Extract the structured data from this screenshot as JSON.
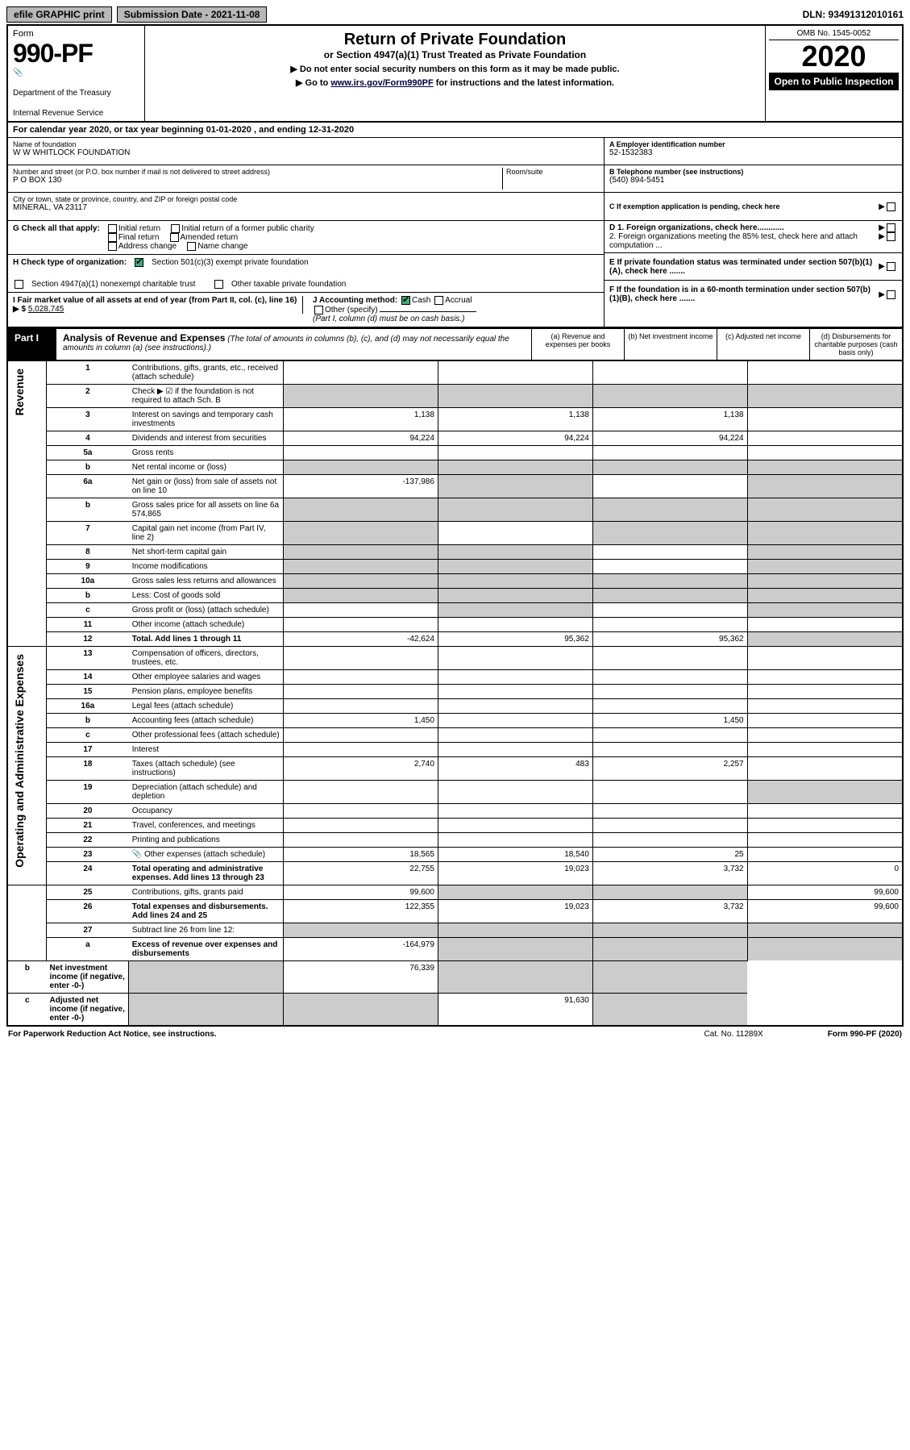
{
  "topbar": {
    "efile": "efile GRAPHIC print",
    "submission_label": "Submission Date - 2021-11-08",
    "dln": "DLN: 93491312010161"
  },
  "header": {
    "form_label": "Form",
    "form_no": "990-PF",
    "dept": "Department of the Treasury",
    "irs": "Internal Revenue Service",
    "title": "Return of Private Foundation",
    "subtitle": "or Section 4947(a)(1) Trust Treated as Private Foundation",
    "note1": "▶ Do not enter social security numbers on this form as it may be made public.",
    "note2_pre": "▶ Go to ",
    "note2_link": "www.irs.gov/Form990PF",
    "note2_post": " for instructions and the latest information.",
    "omb": "OMB No. 1545-0052",
    "year": "2020",
    "open": "Open to Public Inspection"
  },
  "cal": "For calendar year 2020, or tax year beginning 01-01-2020            , and ending 12-31-2020",
  "foundation": {
    "name_lbl": "Name of foundation",
    "name": "W W WHITLOCK FOUNDATION",
    "addr_lbl": "Number and street (or P.O. box number if mail is not delivered to street address)",
    "addr": "P O BOX 130",
    "room_lbl": "Room/suite",
    "city_lbl": "City or town, state or province, country, and ZIP or foreign postal code",
    "city": "MINERAL, VA  23117",
    "a_lbl": "A Employer identification number",
    "a_val": "52-1532383",
    "b_lbl": "B Telephone number (see instructions)",
    "b_val": "(540) 894-5451",
    "c_lbl": "C If exemption application is pending, check here"
  },
  "checks": {
    "g_lbl": "G Check all that apply:",
    "g_opts": [
      "Initial return",
      "Initial return of a former public charity",
      "Final return",
      "Amended return",
      "Address change",
      "Name change"
    ],
    "h_lbl": "H Check type of organization:",
    "h_opt1": "Section 501(c)(3) exempt private foundation",
    "h_opt2": "Section 4947(a)(1) nonexempt charitable trust",
    "h_opt3": "Other taxable private foundation",
    "i_lbl": "I Fair market value of all assets at end of year (from Part II, col. (c), line 16) ▶ $",
    "i_val": "5,028,745",
    "j_lbl": "J Accounting method:",
    "j_cash": "Cash",
    "j_accrual": "Accrual",
    "j_other": "Other (specify)",
    "j_note": "(Part I, column (d) must be on cash basis.)",
    "d1": "D 1. Foreign organizations, check here............",
    "d2": "2. Foreign organizations meeting the 85% test, check here and attach computation ...",
    "e": "E  If private foundation status was terminated under section 507(b)(1)(A), check here .......",
    "f": "F  If the foundation is in a 60-month termination under section 507(b)(1)(B), check here .......",
    "arrow": "▶"
  },
  "part1": {
    "lbl": "Part I",
    "title": "Analysis of Revenue and Expenses",
    "note": " (The total of amounts in columns (b), (c), and (d) may not necessarily equal the amounts in column (a) (see instructions).)",
    "cols": {
      "a": "(a) Revenue and expenses per books",
      "b": "(b) Net investment income",
      "c": "(c) Adjusted net income",
      "d": "(d) Disbursements for charitable purposes (cash basis only)"
    }
  },
  "side_labels": {
    "revenue": "Revenue",
    "opex": "Operating and Administrative Expenses"
  },
  "rows": [
    {
      "ln": "1",
      "desc": "Contributions, gifts, grants, etc., received (attach schedule)",
      "a": "",
      "b": "",
      "c": "",
      "d": ""
    },
    {
      "ln": "2",
      "desc": "Check ▶ ☑ if the foundation is not required to attach Sch. B",
      "a": "",
      "b": "",
      "c": "",
      "d": "",
      "shade_a": true,
      "shade_b": true,
      "shade_c": true,
      "shade_d": true
    },
    {
      "ln": "3",
      "desc": "Interest on savings and temporary cash investments",
      "a": "1,138",
      "b": "1,138",
      "c": "1,138",
      "d": ""
    },
    {
      "ln": "4",
      "desc": "Dividends and interest from securities",
      "a": "94,224",
      "b": "94,224",
      "c": "94,224",
      "d": ""
    },
    {
      "ln": "5a",
      "desc": "Gross rents",
      "a": "",
      "b": "",
      "c": "",
      "d": ""
    },
    {
      "ln": "b",
      "desc": "Net rental income or (loss)",
      "a": "",
      "b": "",
      "c": "",
      "d": "",
      "shade_a": true,
      "shade_b": true,
      "shade_c": true,
      "shade_d": true
    },
    {
      "ln": "6a",
      "desc": "Net gain or (loss) from sale of assets not on line 10",
      "a": "-137,986",
      "b": "",
      "c": "",
      "d": "",
      "shade_b": true,
      "shade_d": true
    },
    {
      "ln": "b",
      "desc": "Gross sales price for all assets on line 6a               574,865",
      "a": "",
      "b": "",
      "c": "",
      "d": "",
      "shade_a": true,
      "shade_b": true,
      "shade_c": true,
      "shade_d": true
    },
    {
      "ln": "7",
      "desc": "Capital gain net income (from Part IV, line 2)",
      "a": "",
      "b": "",
      "c": "",
      "d": "",
      "shade_a": true,
      "shade_c": true,
      "shade_d": true
    },
    {
      "ln": "8",
      "desc": "Net short-term capital gain",
      "a": "",
      "b": "",
      "c": "",
      "d": "",
      "shade_a": true,
      "shade_b": true,
      "shade_d": true
    },
    {
      "ln": "9",
      "desc": "Income modifications",
      "a": "",
      "b": "",
      "c": "",
      "d": "",
      "shade_a": true,
      "shade_b": true,
      "shade_d": true
    },
    {
      "ln": "10a",
      "desc": "Gross sales less returns and allowances",
      "a": "",
      "b": "",
      "c": "",
      "d": "",
      "shade_a": true,
      "shade_b": true,
      "shade_c": true,
      "shade_d": true
    },
    {
      "ln": "b",
      "desc": "Less: Cost of goods sold",
      "a": "",
      "b": "",
      "c": "",
      "d": "",
      "shade_a": true,
      "shade_b": true,
      "shade_c": true,
      "shade_d": true
    },
    {
      "ln": "c",
      "desc": "Gross profit or (loss) (attach schedule)",
      "a": "",
      "b": "",
      "c": "",
      "d": "",
      "shade_b": true,
      "shade_d": true
    },
    {
      "ln": "11",
      "desc": "Other income (attach schedule)",
      "a": "",
      "b": "",
      "c": "",
      "d": ""
    },
    {
      "ln": "12",
      "desc": "Total. Add lines 1 through 11",
      "a": "-42,624",
      "b": "95,362",
      "c": "95,362",
      "d": "",
      "bold": true,
      "shade_d": true
    },
    {
      "ln": "13",
      "desc": "Compensation of officers, directors, trustees, etc.",
      "a": "",
      "b": "",
      "c": "",
      "d": ""
    },
    {
      "ln": "14",
      "desc": "Other employee salaries and wages",
      "a": "",
      "b": "",
      "c": "",
      "d": ""
    },
    {
      "ln": "15",
      "desc": "Pension plans, employee benefits",
      "a": "",
      "b": "",
      "c": "",
      "d": ""
    },
    {
      "ln": "16a",
      "desc": "Legal fees (attach schedule)",
      "a": "",
      "b": "",
      "c": "",
      "d": ""
    },
    {
      "ln": "b",
      "desc": "Accounting fees (attach schedule)",
      "a": "1,450",
      "b": "",
      "c": "1,450",
      "d": ""
    },
    {
      "ln": "c",
      "desc": "Other professional fees (attach schedule)",
      "a": "",
      "b": "",
      "c": "",
      "d": ""
    },
    {
      "ln": "17",
      "desc": "Interest",
      "a": "",
      "b": "",
      "c": "",
      "d": ""
    },
    {
      "ln": "18",
      "desc": "Taxes (attach schedule) (see instructions)",
      "a": "2,740",
      "b": "483",
      "c": "2,257",
      "d": ""
    },
    {
      "ln": "19",
      "desc": "Depreciation (attach schedule) and depletion",
      "a": "",
      "b": "",
      "c": "",
      "d": "",
      "shade_d": true
    },
    {
      "ln": "20",
      "desc": "Occupancy",
      "a": "",
      "b": "",
      "c": "",
      "d": ""
    },
    {
      "ln": "21",
      "desc": "Travel, conferences, and meetings",
      "a": "",
      "b": "",
      "c": "",
      "d": ""
    },
    {
      "ln": "22",
      "desc": "Printing and publications",
      "a": "",
      "b": "",
      "c": "",
      "d": ""
    },
    {
      "ln": "23",
      "desc": "Other expenses (attach schedule)",
      "a": "18,565",
      "b": "18,540",
      "c": "25",
      "d": "",
      "icon": true
    },
    {
      "ln": "24",
      "desc": "Total operating and administrative expenses. Add lines 13 through 23",
      "a": "22,755",
      "b": "19,023",
      "c": "3,732",
      "d": "0",
      "bold": true
    },
    {
      "ln": "25",
      "desc": "Contributions, gifts, grants paid",
      "a": "99,600",
      "b": "",
      "c": "",
      "d": "99,600",
      "shade_b": true,
      "shade_c": true
    },
    {
      "ln": "26",
      "desc": "Total expenses and disbursements. Add lines 24 and 25",
      "a": "122,355",
      "b": "19,023",
      "c": "3,732",
      "d": "99,600",
      "bold": true
    },
    {
      "ln": "27",
      "desc": "Subtract line 26 from line 12:",
      "a": "",
      "b": "",
      "c": "",
      "d": "",
      "shade_a": true,
      "shade_b": true,
      "shade_c": true,
      "shade_d": true
    },
    {
      "ln": "a",
      "desc": "Excess of revenue over expenses and disbursements",
      "a": "-164,979",
      "b": "",
      "c": "",
      "d": "",
      "bold": true,
      "shade_b": true,
      "shade_c": true,
      "shade_d": true
    },
    {
      "ln": "b",
      "desc": "Net investment income (if negative, enter -0-)",
      "a": "",
      "b": "76,339",
      "c": "",
      "d": "",
      "bold": true,
      "shade_a": true,
      "shade_c": true,
      "shade_d": true
    },
    {
      "ln": "c",
      "desc": "Adjusted net income (if negative, enter -0-)",
      "a": "",
      "b": "",
      "c": "91,630",
      "d": "",
      "bold": true,
      "shade_a": true,
      "shade_b": true,
      "shade_d": true
    }
  ],
  "footer": {
    "paperwork": "For Paperwork Reduction Act Notice, see instructions.",
    "cat": "Cat. No. 11289X",
    "form": "Form 990-PF (2020)"
  }
}
